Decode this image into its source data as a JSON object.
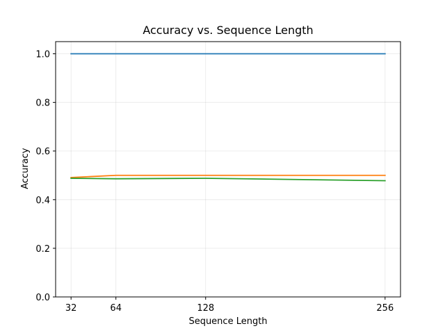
{
  "chart_data": {
    "type": "line",
    "title": "Accuracy vs. Sequence Length",
    "xlabel": "Sequence Length",
    "ylabel": "Accuracy",
    "x": [
      32,
      64,
      128,
      256
    ],
    "xlim": [
      21,
      267
    ],
    "ylim": [
      0,
      1.05
    ],
    "xticks": [
      32,
      64,
      128,
      256
    ],
    "yticks": [
      0.0,
      0.2,
      0.4,
      0.6,
      0.8,
      1.0
    ],
    "ytick_labels": [
      "0.0",
      "0.2",
      "0.4",
      "0.6",
      "0.8",
      "1.0"
    ],
    "grid": true,
    "legend": "none",
    "series": [
      {
        "color": "#1f77b4",
        "values": [
          1.0,
          1.0,
          1.0,
          1.0
        ]
      },
      {
        "color": "#ff7f0e",
        "values": [
          0.491,
          0.5,
          0.5,
          0.5
        ]
      },
      {
        "color": "#2ca02c",
        "values": [
          0.488,
          0.486,
          0.488,
          0.478
        ]
      }
    ]
  }
}
